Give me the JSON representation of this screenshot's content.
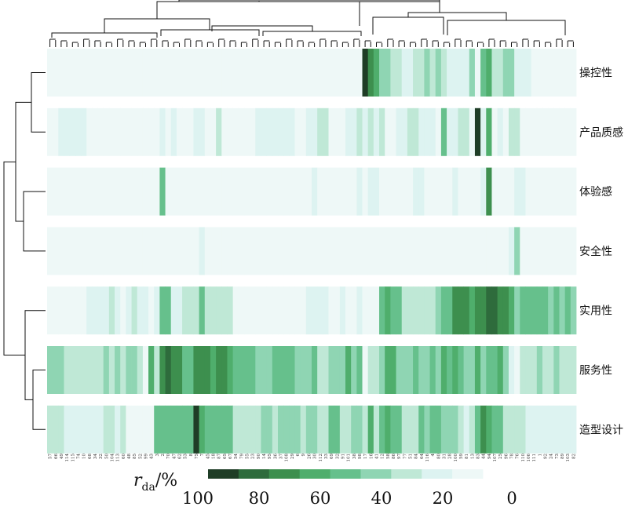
{
  "chart_data": {
    "type": "heatmap",
    "title": "",
    "rows": [
      "操控性",
      "产品质感",
      "体验感",
      "安全性",
      "实用性",
      "服务性",
      "造型设计"
    ],
    "columns": [
      "57",
      "66",
      "49",
      "114",
      "115",
      "74",
      "10",
      "68",
      "34",
      "32",
      "50",
      "104",
      "113",
      "60",
      "48",
      "85",
      "52",
      "99",
      "43",
      "3",
      "2",
      "70",
      "47",
      "62",
      "53",
      "8",
      "75",
      "7",
      "45",
      "18",
      "87",
      "65",
      "67",
      "54",
      "79",
      "55",
      "23",
      "90",
      "14",
      "95",
      "36",
      "37",
      "108",
      "29",
      "6",
      "9",
      "26",
      "30",
      "112",
      "33",
      "69",
      "32",
      "91",
      "101",
      "38",
      "98",
      "17",
      "16",
      "41",
      "12",
      "58",
      "86",
      "97",
      "77",
      "51",
      "84",
      "64",
      "116",
      "4",
      "80",
      "31",
      "28",
      "100",
      "59",
      "81",
      "13",
      "83",
      "44",
      "94",
      "107",
      "25",
      "96",
      "78",
      "76",
      "110",
      "106",
      "111",
      "1",
      "92",
      "24",
      "73",
      "89",
      "103",
      "82"
    ],
    "color_scale": {
      "label_main": "r",
      "label_sub": "da",
      "label_unit": "/%",
      "ticks": [
        "100",
        "80",
        "60",
        "40",
        "20",
        "0"
      ],
      "colors": [
        "#1f3d26",
        "#2e6b3c",
        "#3d8f4e",
        "#4fae6c",
        "#66c08c",
        "#8fd5b3",
        "#bfe8d6",
        "#ddf3f1",
        "#eef8f7"
      ]
    },
    "values": [
      [
        4,
        4,
        4,
        12,
        12,
        12,
        12,
        12,
        12,
        4,
        4,
        4,
        4,
        12,
        4,
        4,
        4,
        4,
        4,
        4,
        4,
        4,
        4,
        4,
        4,
        12,
        4,
        4,
        4,
        4,
        4,
        4,
        4,
        4,
        4,
        4,
        4,
        4,
        4,
        4,
        4,
        4,
        4,
        4,
        4,
        4,
        4,
        4,
        4,
        4,
        4,
        4,
        4,
        4,
        4,
        4,
        100,
        72,
        64,
        48,
        48,
        40,
        40,
        24,
        24,
        40,
        40,
        48,
        40,
        48,
        40,
        24,
        24,
        24,
        24,
        48,
        4,
        56,
        64,
        40,
        40,
        48,
        48,
        24,
        24,
        24,
        12,
        12,
        12,
        12,
        12,
        12,
        12,
        12
      ],
      [
        12,
        12,
        24,
        24,
        24,
        24,
        24,
        4,
        12,
        12,
        12,
        12,
        4,
        12,
        12,
        4,
        4,
        4,
        4,
        4,
        24,
        12,
        24,
        4,
        12,
        12,
        24,
        24,
        12,
        12,
        40,
        12,
        12,
        12,
        12,
        12,
        12,
        24,
        24,
        24,
        24,
        24,
        24,
        24,
        12,
        12,
        24,
        24,
        40,
        40,
        12,
        12,
        12,
        24,
        24,
        40,
        24,
        40,
        24,
        40,
        12,
        12,
        24,
        24,
        40,
        40,
        24,
        24,
        24,
        12,
        56,
        24,
        24,
        40,
        40,
        12,
        92,
        24,
        64,
        12,
        24,
        12,
        40,
        40,
        12,
        12,
        12,
        12,
        12,
        4,
        12,
        12,
        4,
        4
      ],
      [
        4,
        4,
        4,
        4,
        4,
        4,
        4,
        4,
        4,
        4,
        12,
        4,
        4,
        4,
        4,
        4,
        4,
        4,
        4,
        4,
        56,
        12,
        4,
        12,
        4,
        12,
        4,
        4,
        4,
        4,
        4,
        4,
        4,
        4,
        4,
        4,
        4,
        4,
        4,
        4,
        12,
        12,
        4,
        12,
        12,
        12,
        12,
        24,
        12,
        4,
        4,
        4,
        4,
        4,
        12,
        24,
        12,
        24,
        24,
        12,
        12,
        12,
        12,
        12,
        12,
        24,
        24,
        12,
        12,
        12,
        12,
        12,
        24,
        12,
        12,
        12,
        12,
        24,
        72,
        12,
        12,
        12,
        12,
        24,
        24,
        12,
        12,
        12,
        12,
        12,
        12,
        12,
        12,
        12
      ],
      [
        4,
        4,
        4,
        4,
        4,
        4,
        4,
        12,
        4,
        4,
        4,
        4,
        4,
        4,
        4,
        4,
        4,
        4,
        4,
        4,
        4,
        4,
        12,
        4,
        4,
        4,
        4,
        24,
        4,
        4,
        4,
        4,
        4,
        4,
        4,
        4,
        4,
        4,
        4,
        4,
        4,
        12,
        12,
        4,
        4,
        12,
        4,
        4,
        4,
        4,
        4,
        4,
        4,
        4,
        12,
        12,
        4,
        4,
        4,
        4,
        12,
        4,
        4,
        4,
        4,
        12,
        4,
        4,
        4,
        12,
        4,
        4,
        4,
        4,
        12,
        4,
        4,
        12,
        12,
        4,
        4,
        12,
        24,
        48,
        4,
        4,
        4,
        4,
        4,
        4,
        4,
        4,
        4,
        4
      ],
      [
        4,
        12,
        4,
        12,
        12,
        12,
        12,
        24,
        24,
        24,
        24,
        40,
        24,
        12,
        24,
        40,
        24,
        24,
        12,
        24,
        56,
        56,
        24,
        24,
        40,
        40,
        40,
        56,
        40,
        40,
        40,
        40,
        40,
        12,
        12,
        12,
        12,
        12,
        12,
        12,
        12,
        12,
        12,
        12,
        12,
        12,
        24,
        24,
        24,
        24,
        12,
        12,
        24,
        12,
        12,
        24,
        12,
        4,
        4,
        56,
        64,
        56,
        56,
        40,
        40,
        40,
        40,
        40,
        40,
        48,
        56,
        56,
        72,
        72,
        72,
        64,
        72,
        72,
        80,
        80,
        72,
        72,
        64,
        48,
        56,
        56,
        56,
        56,
        56,
        48,
        56,
        48,
        56,
        48
      ],
      [
        48,
        48,
        48,
        40,
        40,
        40,
        40,
        40,
        40,
        40,
        48,
        40,
        48,
        40,
        48,
        48,
        40,
        12,
        64,
        40,
        72,
        80,
        72,
        72,
        56,
        56,
        72,
        72,
        72,
        64,
        72,
        72,
        64,
        56,
        56,
        56,
        56,
        48,
        48,
        48,
        56,
        56,
        56,
        56,
        48,
        48,
        48,
        56,
        40,
        40,
        48,
        48,
        48,
        64,
        48,
        56,
        12,
        40,
        40,
        48,
        64,
        64,
        48,
        48,
        48,
        56,
        48,
        48,
        56,
        48,
        64,
        56,
        64,
        56,
        48,
        48,
        64,
        48,
        56,
        56,
        64,
        48,
        24,
        12,
        40,
        40,
        40,
        48,
        40,
        40,
        48,
        40,
        40,
        40
      ],
      [
        40,
        40,
        40,
        24,
        24,
        24,
        24,
        24,
        24,
        24,
        40,
        40,
        24,
        40,
        4,
        4,
        4,
        4,
        4,
        56,
        56,
        56,
        56,
        56,
        56,
        56,
        100,
        64,
        56,
        56,
        56,
        56,
        56,
        40,
        40,
        40,
        40,
        40,
        48,
        48,
        40,
        48,
        48,
        48,
        48,
        40,
        48,
        48,
        40,
        40,
        56,
        56,
        40,
        40,
        48,
        48,
        40,
        64,
        40,
        56,
        64,
        56,
        56,
        40,
        40,
        40,
        56,
        48,
        56,
        56,
        48,
        48,
        48,
        40,
        24,
        40,
        56,
        72,
        64,
        56,
        56,
        40,
        40,
        40,
        40,
        24,
        24,
        24,
        24,
        24,
        24,
        24,
        24,
        24
      ]
    ]
  }
}
